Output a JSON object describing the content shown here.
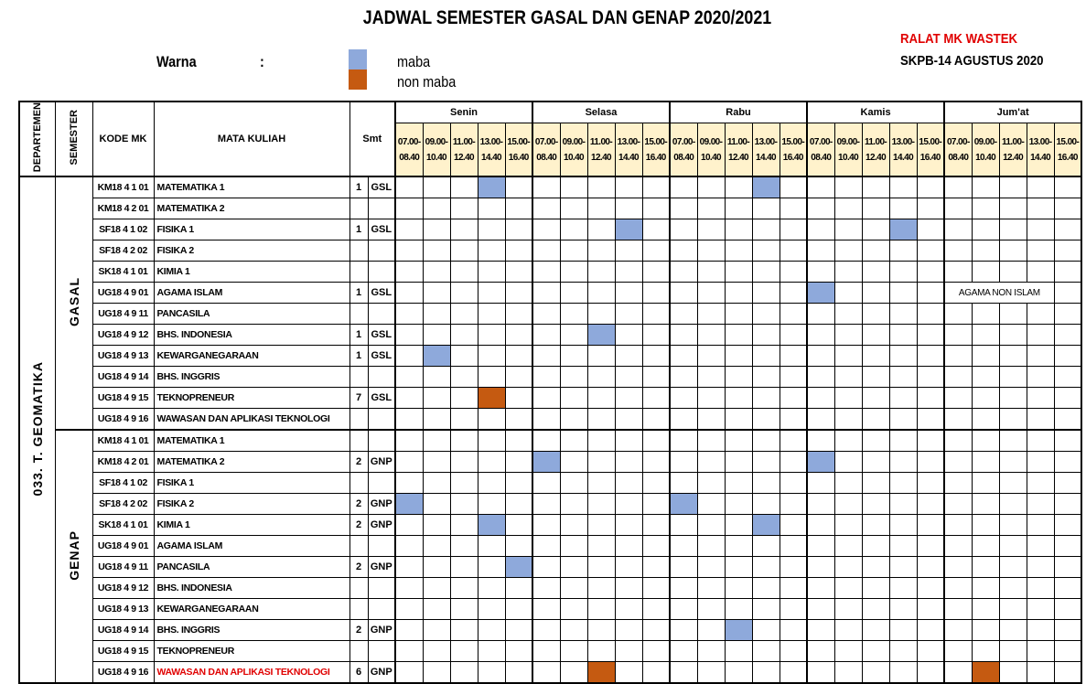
{
  "title": "JADWAL SEMESTER GASAL DAN GENAP 2020/2021",
  "legend": {
    "label": "Warna",
    "colon": ":",
    "items": [
      {
        "label": "maba",
        "color": "#8EA9DB"
      },
      {
        "label": "non maba",
        "color": "#C55A11"
      }
    ]
  },
  "notes": {
    "ralat": "RALAT MK WASTEK",
    "skpb": "SKPB-14 AGUSTUS 2020"
  },
  "colors": {
    "header_fill": "#FFF2CC",
    "maba": "#8EA9DB",
    "non_maba": "#C55A11",
    "correction_text": "#E00000"
  },
  "headers": {
    "departemen": "DEPARTEMEN",
    "semester": "SEMESTER",
    "kode": "KODE MK",
    "mata_kuliah": "MATA KULIAH",
    "smt": "Smt"
  },
  "days": [
    "Senin",
    "Selasa",
    "Rabu",
    "Kamis",
    "Jum'at"
  ],
  "times": [
    [
      "07.00-",
      "08.40"
    ],
    [
      "09.00-",
      "10.40"
    ],
    [
      "11.00-",
      "12.40"
    ],
    [
      "13.00-",
      "14.40"
    ],
    [
      "15.00-",
      "16.40"
    ]
  ],
  "departemen": "033. T. GEOMATIKA",
  "sections": [
    {
      "name": "GASAL",
      "rows": [
        {
          "kode": "KM18 4 1 01",
          "mk": "MATEMATIKA 1",
          "smt": "1",
          "type": "GSL",
          "slots": [
            {
              "day": "Senin",
              "time": "13.00-14.40",
              "kind": "maba"
            },
            {
              "day": "Rabu",
              "time": "13.00-14.40",
              "kind": "maba"
            }
          ]
        },
        {
          "kode": "KM18 4 2 01",
          "mk": "MATEMATIKA 2",
          "smt": "",
          "type": "",
          "slots": []
        },
        {
          "kode": "SF18 4 1 02",
          "mk": "FISIKA 1",
          "smt": "1",
          "type": "GSL",
          "slots": [
            {
              "day": "Selasa",
              "time": "13.00-14.40",
              "kind": "maba"
            },
            {
              "day": "Kamis",
              "time": "13.00-14.40",
              "kind": "maba"
            }
          ]
        },
        {
          "kode": "SF18 4 2 02",
          "mk": "FISIKA 2",
          "smt": "",
          "type": "",
          "slots": []
        },
        {
          "kode": "SK18 4 1 01",
          "mk": "KIMIA 1",
          "smt": "",
          "type": "",
          "slots": []
        },
        {
          "kode": "UG18 4 9 01",
          "mk": "AGAMA ISLAM",
          "smt": "1",
          "type": "GSL",
          "slots": [
            {
              "day": "Kamis",
              "time": "07.00-08.40",
              "kind": "maba"
            }
          ],
          "note": {
            "day": "Jum'at",
            "text": "AGAMA NON ISLAM"
          }
        },
        {
          "kode": "UG18 4 9 11",
          "mk": "PANCASILA",
          "smt": "",
          "type": "",
          "slots": []
        },
        {
          "kode": "UG18 4 9 12",
          "mk": "BHS. INDONESIA",
          "smt": "1",
          "type": "GSL",
          "slots": [
            {
              "day": "Selasa",
              "time": "11.00-12.40",
              "kind": "maba"
            }
          ]
        },
        {
          "kode": "UG18 4 9 13",
          "mk": "KEWARGANEGARAAN",
          "smt": "1",
          "type": "GSL",
          "slots": [
            {
              "day": "Senin",
              "time": "09.00-10.40",
              "kind": "maba"
            }
          ]
        },
        {
          "kode": "UG18 4 9 14",
          "mk": "BHS. INGGRIS",
          "smt": "",
          "type": "",
          "slots": []
        },
        {
          "kode": "UG18 4 9 15",
          "mk": "TEKNOPRENEUR",
          "smt": "7",
          "type": "GSL",
          "slots": [
            {
              "day": "Senin",
              "time": "13.00-14.40",
              "kind": "non_maba"
            }
          ]
        },
        {
          "kode": "UG18 4 9 16",
          "mk": "WAWASAN DAN APLIKASI TEKNOLOGI",
          "smt": "",
          "type": "",
          "slots": []
        }
      ]
    },
    {
      "name": "GENAP",
      "rows": [
        {
          "kode": "KM18 4 1 01",
          "mk": "MATEMATIKA 1",
          "smt": "",
          "type": "",
          "slots": []
        },
        {
          "kode": "KM18 4 2 01",
          "mk": "MATEMATIKA 2",
          "smt": "2",
          "type": "GNP",
          "slots": [
            {
              "day": "Selasa",
              "time": "07.00-08.40",
              "kind": "maba"
            },
            {
              "day": "Kamis",
              "time": "07.00-08.40",
              "kind": "maba"
            }
          ]
        },
        {
          "kode": "SF18 4 1 02",
          "mk": "FISIKA 1",
          "smt": "",
          "type": "",
          "slots": []
        },
        {
          "kode": "SF18 4 2 02",
          "mk": "FISIKA 2",
          "smt": "2",
          "type": "GNP",
          "slots": [
            {
              "day": "Senin",
              "time": "07.00-08.40",
              "kind": "maba"
            },
            {
              "day": "Rabu",
              "time": "07.00-08.40",
              "kind": "maba"
            }
          ]
        },
        {
          "kode": "SK18 4 1 01",
          "mk": "KIMIA 1",
          "smt": "2",
          "type": "GNP",
          "slots": [
            {
              "day": "Senin",
              "time": "13.00-14.40",
              "kind": "maba"
            },
            {
              "day": "Rabu",
              "time": "13.00-14.40",
              "kind": "maba"
            }
          ]
        },
        {
          "kode": "UG18 4 9 01",
          "mk": "AGAMA ISLAM",
          "smt": "",
          "type": "",
          "slots": []
        },
        {
          "kode": "UG18 4 9 11",
          "mk": "PANCASILA",
          "smt": "2",
          "type": "GNP",
          "slots": [
            {
              "day": "Senin",
              "time": "15.00-16.40",
              "kind": "maba"
            }
          ]
        },
        {
          "kode": "UG18 4 9 12",
          "mk": "BHS. INDONESIA",
          "smt": "",
          "type": "",
          "slots": []
        },
        {
          "kode": "UG18 4 9 13",
          "mk": "KEWARGANEGARAAN",
          "smt": "",
          "type": "",
          "slots": []
        },
        {
          "kode": "UG18 4 9 14",
          "mk": "BHS. INGGRIS",
          "smt": "2",
          "type": "GNP",
          "slots": [
            {
              "day": "Rabu",
              "time": "11.00-12.40",
              "kind": "maba"
            }
          ]
        },
        {
          "kode": "UG18 4 9 15",
          "mk": "TEKNOPRENEUR",
          "smt": "",
          "type": "",
          "slots": []
        },
        {
          "kode": "UG18 4 9 16",
          "mk": "WAWASAN DAN APLIKASI TEKNOLOGI",
          "smt": "6",
          "type": "GNP",
          "highlight": true,
          "slots": [
            {
              "day": "Selasa",
              "time": "11.00-12.40",
              "kind": "non_maba"
            },
            {
              "day": "Jum'at",
              "time": "09.00-10.40",
              "kind": "non_maba"
            }
          ]
        }
      ]
    }
  ]
}
